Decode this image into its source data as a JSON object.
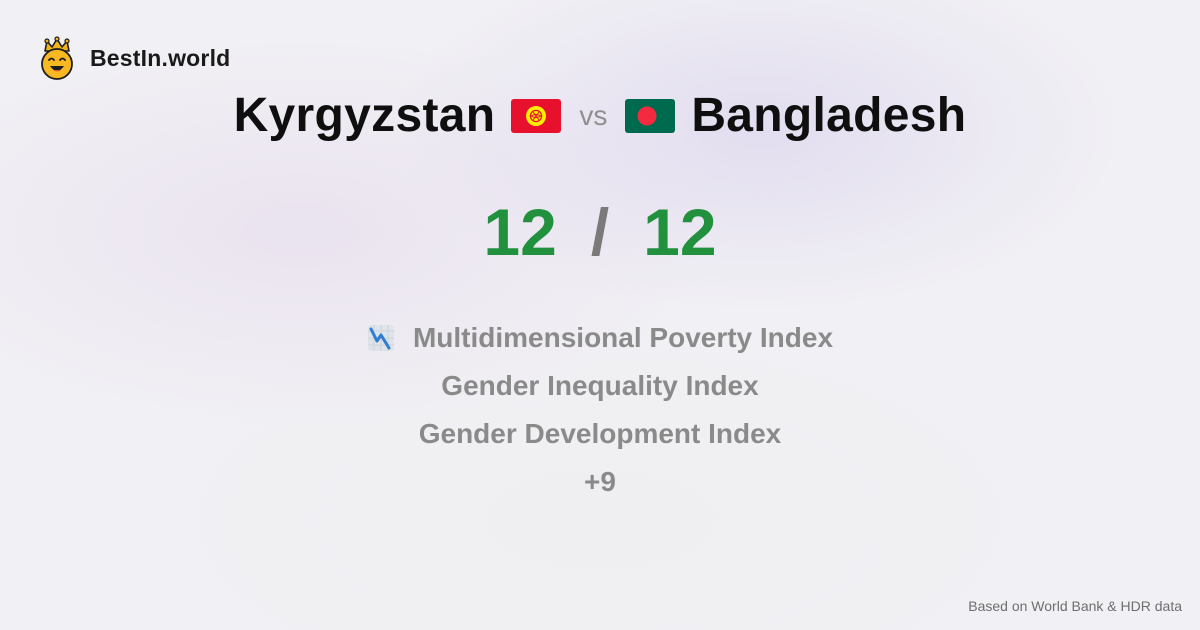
{
  "brand": {
    "name": "BestIn.world",
    "logo_icon": "smiling-crowned-face-icon"
  },
  "comparison": {
    "left_country": "Kyrgyzstan",
    "left_flag_icon": "kyrgyzstan-flag-icon",
    "vs_label": "vs",
    "right_country": "Bangladesh",
    "right_flag_icon": "bangladesh-flag-icon"
  },
  "score": {
    "left": "12",
    "separator": "/",
    "right": "12",
    "color": "#21913d"
  },
  "metrics": [
    {
      "label": "Multidimensional Poverty Index",
      "icon": "chart-decreasing-icon"
    },
    {
      "label": "Gender Inequality Index"
    },
    {
      "label": "Gender Development Index"
    },
    {
      "label": "+9"
    }
  ],
  "footer": {
    "source": "Based on World Bank & HDR data"
  }
}
